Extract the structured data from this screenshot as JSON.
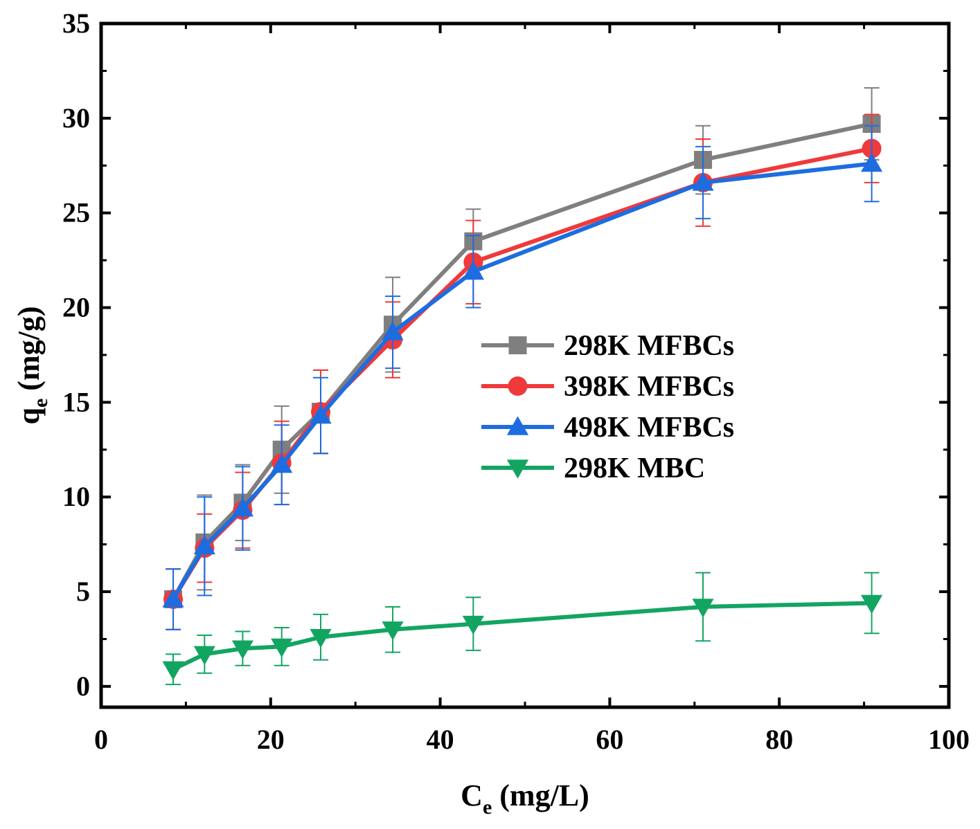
{
  "chart_data": {
    "type": "line",
    "title": "",
    "xlabel": "C_e (mg/L)",
    "xlabel_main": "C",
    "xlabel_sub": "e",
    "xlabel_rest": " (mg/L)",
    "ylabel": "q_e (mg/g)",
    "ylabel_main": "q",
    "ylabel_sub": "e",
    "ylabel_rest": " (mg/g)",
    "xlim": [
      0,
      100
    ],
    "ylim": [
      -1.1,
      35
    ],
    "xticks": [
      0,
      20,
      40,
      60,
      80,
      100
    ],
    "yticks": [
      0,
      5,
      10,
      15,
      20,
      25,
      30,
      35
    ],
    "x_minor_step": 10,
    "y_minor_step": 2.5,
    "grid": false,
    "legend_position": "center-right",
    "series": [
      {
        "name": "298K MFBCs",
        "color": "#7f7f7f",
        "marker": "square",
        "x": [
          8.5,
          12.2,
          16.7,
          21.3,
          25.9,
          34.4,
          43.9,
          71.0,
          90.9
        ],
        "y": [
          4.6,
          7.6,
          9.7,
          12.5,
          14.5,
          19.1,
          23.5,
          27.8,
          29.7
        ],
        "err": [
          1.6,
          2.5,
          2.0,
          2.3,
          2.2,
          2.5,
          1.7,
          1.8,
          1.9
        ]
      },
      {
        "name": "398K MFBCs",
        "color": "#f0393a",
        "marker": "circle",
        "x": [
          8.5,
          12.2,
          16.7,
          21.3,
          25.9,
          34.4,
          43.9,
          71.0,
          90.9
        ],
        "y": [
          4.6,
          7.3,
          9.3,
          11.8,
          14.5,
          18.3,
          22.4,
          26.6,
          28.4
        ],
        "err": [
          1.6,
          1.8,
          2.0,
          2.2,
          2.2,
          2.0,
          2.2,
          2.3,
          1.8
        ]
      },
      {
        "name": "498K MFBCs",
        "color": "#1d6de0",
        "marker": "triangle-up",
        "x": [
          8.5,
          12.2,
          16.7,
          21.3,
          25.9,
          34.4,
          43.9,
          71.0,
          90.9
        ],
        "y": [
          4.6,
          7.4,
          9.4,
          11.7,
          14.3,
          18.7,
          21.9,
          26.6,
          27.6
        ],
        "err": [
          1.6,
          2.6,
          2.2,
          2.1,
          2.0,
          1.9,
          1.9,
          1.9,
          2.0
        ]
      },
      {
        "name": "298K MBC",
        "color": "#12a562",
        "marker": "triangle-down",
        "x": [
          8.5,
          12.2,
          16.7,
          21.3,
          25.9,
          34.4,
          43.9,
          71.0,
          90.9
        ],
        "y": [
          0.9,
          1.7,
          2.0,
          2.1,
          2.6,
          3.0,
          3.3,
          4.2,
          4.4
        ],
        "err": [
          0.8,
          1.0,
          0.9,
          1.0,
          1.2,
          1.2,
          1.4,
          1.8,
          1.6
        ]
      }
    ]
  }
}
